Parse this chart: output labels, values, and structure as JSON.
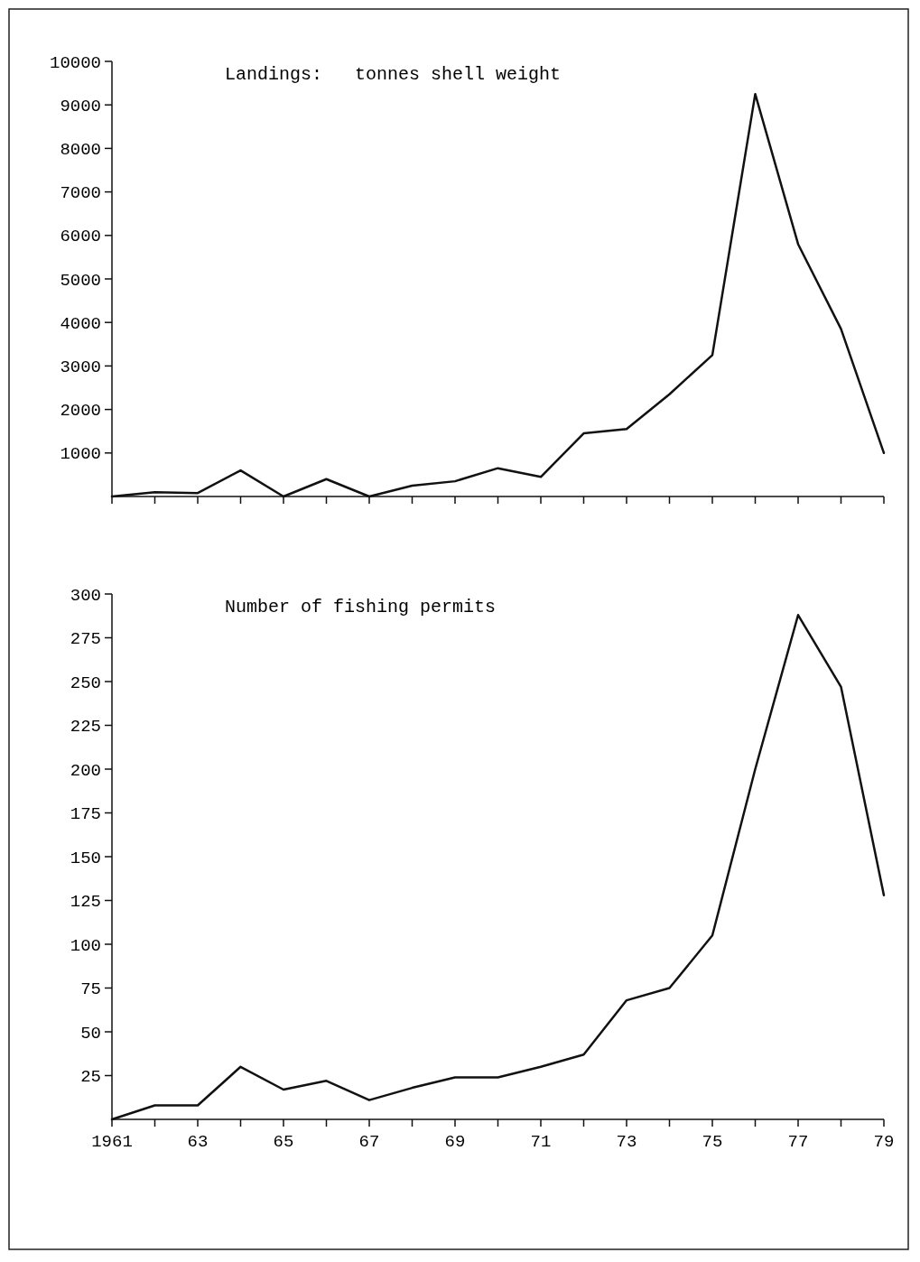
{
  "chart_data": [
    {
      "type": "line",
      "title": "Landings:   tonnes shell weight",
      "x": [
        1961,
        1962,
        1963,
        1964,
        1965,
        1966,
        1967,
        1968,
        1969,
        1970,
        1971,
        1972,
        1973,
        1974,
        1975,
        1976,
        1977,
        1978,
        1979
      ],
      "series": [
        {
          "color": "#111111",
          "values": [
            0,
            100,
            80,
            600,
            0,
            400,
            0,
            250,
            350,
            650,
            450,
            1450,
            1550,
            2350,
            3250,
            9250,
            5800,
            3850,
            1000
          ]
        }
      ],
      "xlim": [
        1961,
        1979
      ],
      "xticks": [
        1961,
        1962,
        1963,
        1964,
        1965,
        1966,
        1967,
        1968,
        1969,
        1970,
        1971,
        1972,
        1973,
        1974,
        1975,
        1976,
        1977,
        1978,
        1979
      ],
      "ylim": [
        0,
        10000
      ],
      "yticks": [
        1000,
        2000,
        3000,
        4000,
        5000,
        6000,
        7000,
        8000,
        9000,
        10000
      ],
      "tick_labels": "y",
      "grid": false
    },
    {
      "type": "line",
      "title": "Number of fishing permits",
      "x": [
        1961,
        1962,
        1963,
        1964,
        1965,
        1966,
        1967,
        1968,
        1969,
        1970,
        1971,
        1972,
        1973,
        1974,
        1975,
        1976,
        1977,
        1978,
        1979
      ],
      "series": [
        {
          "color": "#111111",
          "values": [
            0,
            8,
            8,
            30,
            17,
            22,
            11,
            18,
            24,
            24,
            30,
            37,
            68,
            75,
            105,
            200,
            288,
            247,
            128
          ]
        }
      ],
      "xlim": [
        1961,
        1979
      ],
      "xticks": [
        {
          "value": 1961,
          "label": "1961"
        },
        {
          "value": 1962,
          "label": null
        },
        {
          "value": 1963,
          "label": "63"
        },
        {
          "value": 1964,
          "label": null
        },
        {
          "value": 1965,
          "label": "65"
        },
        {
          "value": 1966,
          "label": null
        },
        {
          "value": 1967,
          "label": "67"
        },
        {
          "value": 1968,
          "label": null
        },
        {
          "value": 1969,
          "label": "69"
        },
        {
          "value": 1970,
          "label": null
        },
        {
          "value": 1971,
          "label": "71"
        },
        {
          "value": 1972,
          "label": null
        },
        {
          "value": 1973,
          "label": "73"
        },
        {
          "value": 1974,
          "label": null
        },
        {
          "value": 1975,
          "label": "75"
        },
        {
          "value": 1976,
          "label": null
        },
        {
          "value": 1977,
          "label": "77"
        },
        {
          "value": 1978,
          "label": null
        },
        {
          "value": 1979,
          "label": "79"
        }
      ],
      "ylim": [
        0,
        300
      ],
      "yticks": [
        25,
        50,
        75,
        100,
        125,
        150,
        175,
        200,
        225,
        250,
        275,
        300
      ],
      "grid": false
    }
  ]
}
